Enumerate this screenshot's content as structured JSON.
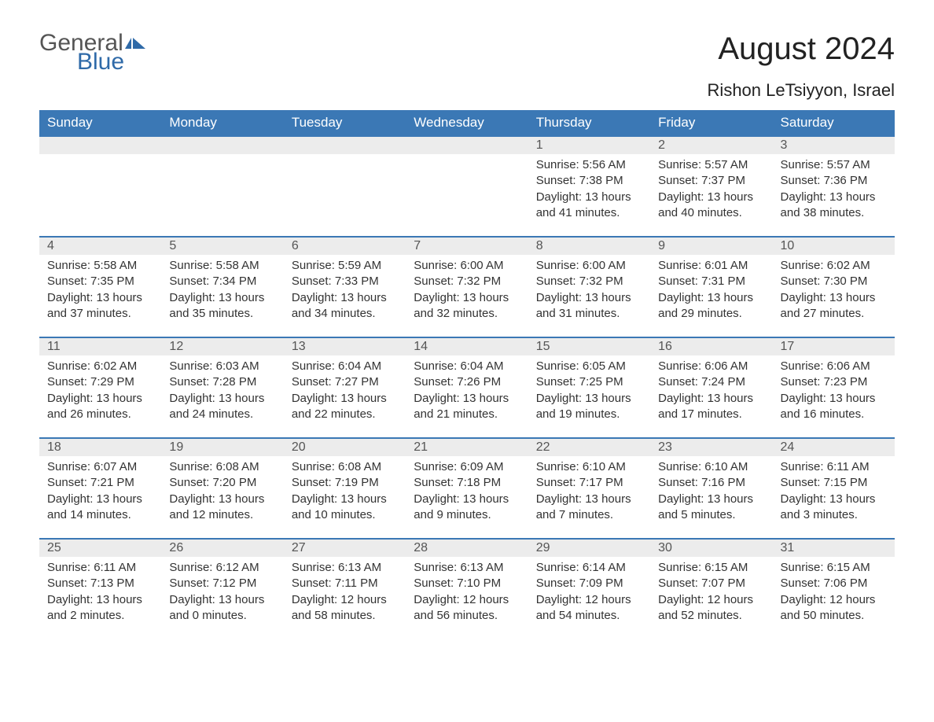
{
  "brand": {
    "part1": "General",
    "part2": "Blue"
  },
  "title": "August 2024",
  "location": "Rishon LeTsiyyon, Israel",
  "colors": {
    "header_bg": "#3b78b5",
    "header_text": "#ffffff",
    "row_border": "#3b78b5",
    "daynum_bg": "#ececec",
    "body_text": "#333333",
    "brand_blue": "#2f6aa8"
  },
  "day_headers": [
    "Sunday",
    "Monday",
    "Tuesday",
    "Wednesday",
    "Thursday",
    "Friday",
    "Saturday"
  ],
  "weeks": [
    [
      null,
      null,
      null,
      null,
      {
        "n": "1",
        "sunrise": "5:56 AM",
        "sunset": "7:38 PM",
        "dl1": "Daylight: 13 hours",
        "dl2": "and 41 minutes."
      },
      {
        "n": "2",
        "sunrise": "5:57 AM",
        "sunset": "7:37 PM",
        "dl1": "Daylight: 13 hours",
        "dl2": "and 40 minutes."
      },
      {
        "n": "3",
        "sunrise": "5:57 AM",
        "sunset": "7:36 PM",
        "dl1": "Daylight: 13 hours",
        "dl2": "and 38 minutes."
      }
    ],
    [
      {
        "n": "4",
        "sunrise": "5:58 AM",
        "sunset": "7:35 PM",
        "dl1": "Daylight: 13 hours",
        "dl2": "and 37 minutes."
      },
      {
        "n": "5",
        "sunrise": "5:58 AM",
        "sunset": "7:34 PM",
        "dl1": "Daylight: 13 hours",
        "dl2": "and 35 minutes."
      },
      {
        "n": "6",
        "sunrise": "5:59 AM",
        "sunset": "7:33 PM",
        "dl1": "Daylight: 13 hours",
        "dl2": "and 34 minutes."
      },
      {
        "n": "7",
        "sunrise": "6:00 AM",
        "sunset": "7:32 PM",
        "dl1": "Daylight: 13 hours",
        "dl2": "and 32 minutes."
      },
      {
        "n": "8",
        "sunrise": "6:00 AM",
        "sunset": "7:32 PM",
        "dl1": "Daylight: 13 hours",
        "dl2": "and 31 minutes."
      },
      {
        "n": "9",
        "sunrise": "6:01 AM",
        "sunset": "7:31 PM",
        "dl1": "Daylight: 13 hours",
        "dl2": "and 29 minutes."
      },
      {
        "n": "10",
        "sunrise": "6:02 AM",
        "sunset": "7:30 PM",
        "dl1": "Daylight: 13 hours",
        "dl2": "and 27 minutes."
      }
    ],
    [
      {
        "n": "11",
        "sunrise": "6:02 AM",
        "sunset": "7:29 PM",
        "dl1": "Daylight: 13 hours",
        "dl2": "and 26 minutes."
      },
      {
        "n": "12",
        "sunrise": "6:03 AM",
        "sunset": "7:28 PM",
        "dl1": "Daylight: 13 hours",
        "dl2": "and 24 minutes."
      },
      {
        "n": "13",
        "sunrise": "6:04 AM",
        "sunset": "7:27 PM",
        "dl1": "Daylight: 13 hours",
        "dl2": "and 22 minutes."
      },
      {
        "n": "14",
        "sunrise": "6:04 AM",
        "sunset": "7:26 PM",
        "dl1": "Daylight: 13 hours",
        "dl2": "and 21 minutes."
      },
      {
        "n": "15",
        "sunrise": "6:05 AM",
        "sunset": "7:25 PM",
        "dl1": "Daylight: 13 hours",
        "dl2": "and 19 minutes."
      },
      {
        "n": "16",
        "sunrise": "6:06 AM",
        "sunset": "7:24 PM",
        "dl1": "Daylight: 13 hours",
        "dl2": "and 17 minutes."
      },
      {
        "n": "17",
        "sunrise": "6:06 AM",
        "sunset": "7:23 PM",
        "dl1": "Daylight: 13 hours",
        "dl2": "and 16 minutes."
      }
    ],
    [
      {
        "n": "18",
        "sunrise": "6:07 AM",
        "sunset": "7:21 PM",
        "dl1": "Daylight: 13 hours",
        "dl2": "and 14 minutes."
      },
      {
        "n": "19",
        "sunrise": "6:08 AM",
        "sunset": "7:20 PM",
        "dl1": "Daylight: 13 hours",
        "dl2": "and 12 minutes."
      },
      {
        "n": "20",
        "sunrise": "6:08 AM",
        "sunset": "7:19 PM",
        "dl1": "Daylight: 13 hours",
        "dl2": "and 10 minutes."
      },
      {
        "n": "21",
        "sunrise": "6:09 AM",
        "sunset": "7:18 PM",
        "dl1": "Daylight: 13 hours",
        "dl2": "and 9 minutes."
      },
      {
        "n": "22",
        "sunrise": "6:10 AM",
        "sunset": "7:17 PM",
        "dl1": "Daylight: 13 hours",
        "dl2": "and 7 minutes."
      },
      {
        "n": "23",
        "sunrise": "6:10 AM",
        "sunset": "7:16 PM",
        "dl1": "Daylight: 13 hours",
        "dl2": "and 5 minutes."
      },
      {
        "n": "24",
        "sunrise": "6:11 AM",
        "sunset": "7:15 PM",
        "dl1": "Daylight: 13 hours",
        "dl2": "and 3 minutes."
      }
    ],
    [
      {
        "n": "25",
        "sunrise": "6:11 AM",
        "sunset": "7:13 PM",
        "dl1": "Daylight: 13 hours",
        "dl2": "and 2 minutes."
      },
      {
        "n": "26",
        "sunrise": "6:12 AM",
        "sunset": "7:12 PM",
        "dl1": "Daylight: 13 hours",
        "dl2": "and 0 minutes."
      },
      {
        "n": "27",
        "sunrise": "6:13 AM",
        "sunset": "7:11 PM",
        "dl1": "Daylight: 12 hours",
        "dl2": "and 58 minutes."
      },
      {
        "n": "28",
        "sunrise": "6:13 AM",
        "sunset": "7:10 PM",
        "dl1": "Daylight: 12 hours",
        "dl2": "and 56 minutes."
      },
      {
        "n": "29",
        "sunrise": "6:14 AM",
        "sunset": "7:09 PM",
        "dl1": "Daylight: 12 hours",
        "dl2": "and 54 minutes."
      },
      {
        "n": "30",
        "sunrise": "6:15 AM",
        "sunset": "7:07 PM",
        "dl1": "Daylight: 12 hours",
        "dl2": "and 52 minutes."
      },
      {
        "n": "31",
        "sunrise": "6:15 AM",
        "sunset": "7:06 PM",
        "dl1": "Daylight: 12 hours",
        "dl2": "and 50 minutes."
      }
    ]
  ],
  "labels": {
    "sunrise": "Sunrise: ",
    "sunset": "Sunset: "
  }
}
